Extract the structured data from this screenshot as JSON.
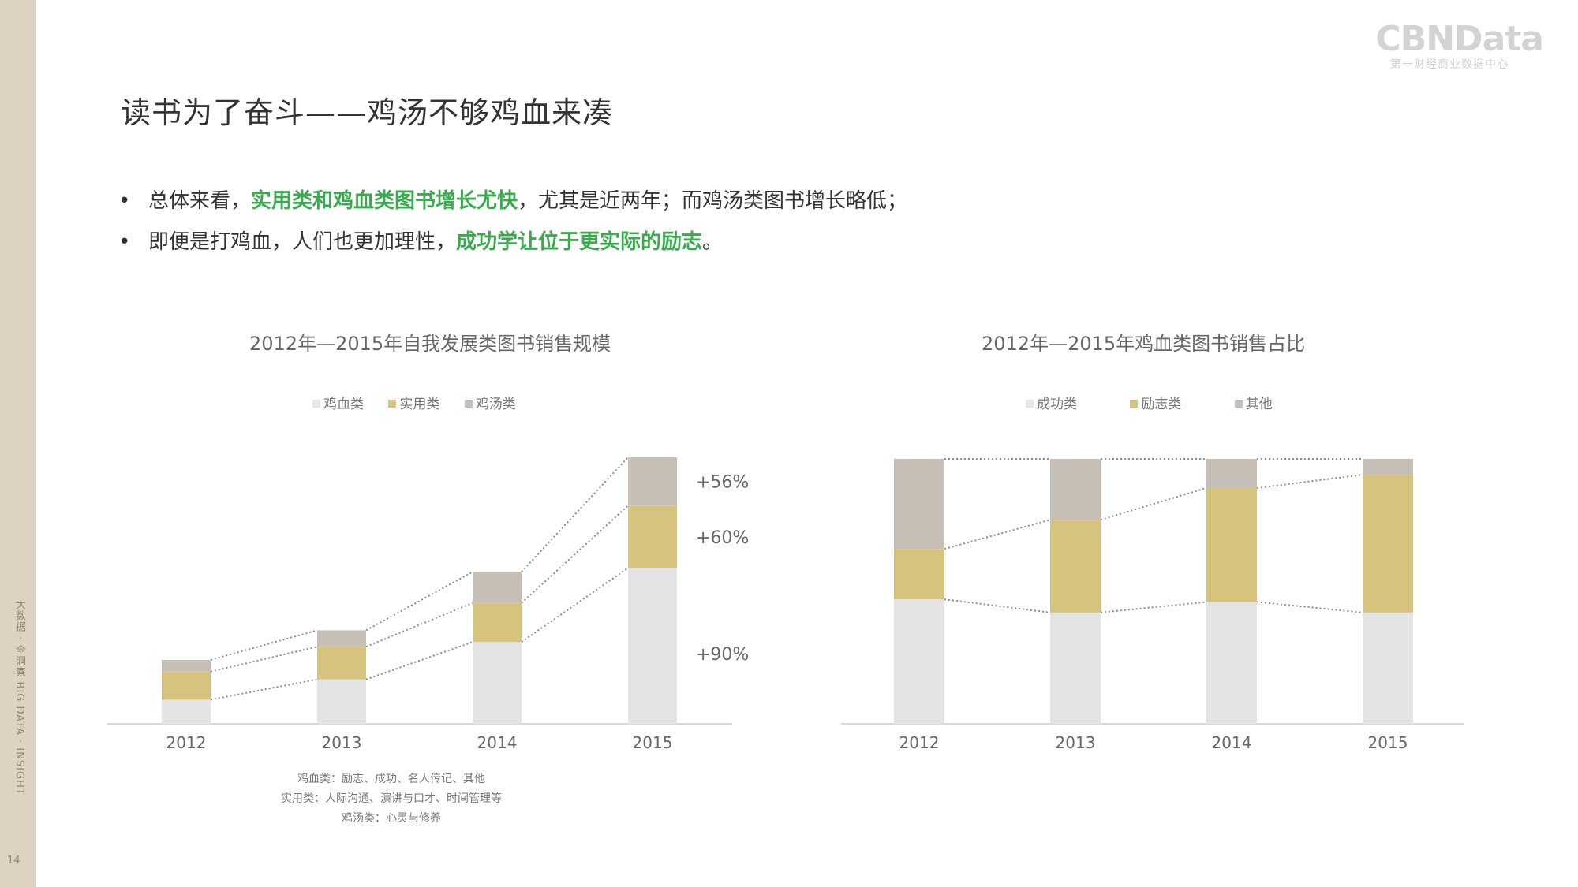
{
  "sidebar": {
    "vertical_text": "大数据 · 全洞察    BIG DATA · INSIGHT",
    "page_number": "14"
  },
  "logo": {
    "main": "CBNData",
    "sub": "第一财经商业数据中心"
  },
  "title": "读书为了奋斗——鸡汤不够鸡血来凑",
  "bullets": [
    {
      "pre": "总体来看，",
      "highlight": "实用类和鸡血类图书增长尤快",
      "post": "，尤其是近两年；而鸡汤类图书增长略低；"
    },
    {
      "pre": "即便是打鸡血，人们也更加理性，",
      "highlight": "成功学让位于更实际的励志",
      "post": "。"
    }
  ],
  "colors": {
    "light": "#e4e4e4",
    "tan": "#d5c37e",
    "grey": "#c6bfb6",
    "sidebar": "#dcd3c3",
    "highlight": "#3aaa4e"
  },
  "chart_data": [
    {
      "type": "bar",
      "stacked": true,
      "title": "2012年—2015年自我发展类图书销售规模",
      "categories": [
        "2012",
        "2013",
        "2014",
        "2015"
      ],
      "series": [
        {
          "name": "鸡血类",
          "color": "#e4e4e4",
          "values": [
            31,
            57,
            105,
            200
          ]
        },
        {
          "name": "实用类",
          "color": "#d5c37e",
          "values": [
            36,
            42,
            50,
            80
          ]
        },
        {
          "name": "鸡汤类",
          "color": "#c6bfb6",
          "values": [
            15,
            21,
            40,
            62
          ]
        }
      ],
      "ylim": [
        0,
        342
      ],
      "annotations": [
        "+56%",
        "+60%",
        "+90%"
      ],
      "legend": "top",
      "grid": false,
      "footnotes": [
        "鸡血类：励志、成功、名人传记、其他",
        "实用类：人际沟通、演讲与口才、时间管理等",
        "鸡汤类：心灵与修养"
      ]
    },
    {
      "type": "bar",
      "stacked": true,
      "title": "2012年—2015年鸡血类图书销售占比",
      "categories": [
        "2012",
        "2013",
        "2014",
        "2015"
      ],
      "series": [
        {
          "name": "成功类",
          "color": "#e4e4e4",
          "values": [
            47,
            42,
            46,
            42
          ]
        },
        {
          "name": "励志类",
          "color": "#d5c37e",
          "values": [
            19,
            35,
            43,
            52
          ]
        },
        {
          "name": "其他",
          "color": "#c6bfb6",
          "values": [
            34,
            23,
            11,
            6
          ]
        }
      ],
      "ylim": [
        0,
        100
      ],
      "legend": "top",
      "grid": false
    }
  ]
}
